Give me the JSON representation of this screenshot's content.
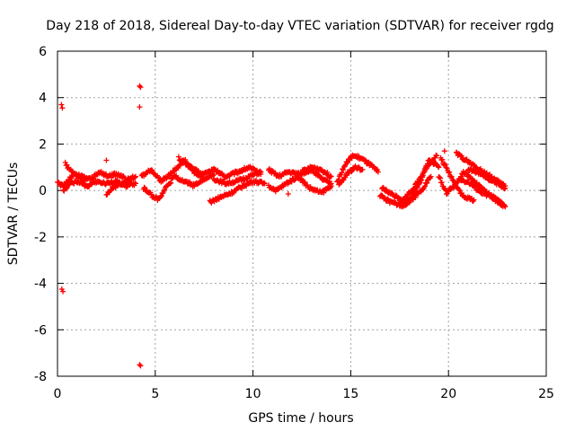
{
  "chart_data": {
    "type": "scatter",
    "title": "Day 218 of 2018, Sidereal Day-to-day VTEC variation (SDTVAR) for receiver rgdg",
    "xlabel": "GPS time / hours",
    "ylabel": "SDTVAR / TECUs",
    "xlim": [
      0,
      25
    ],
    "ylim": [
      -8,
      6
    ],
    "x_ticks": [
      0,
      5,
      10,
      15,
      20,
      25
    ],
    "y_ticks": [
      -8,
      -6,
      -4,
      -2,
      0,
      2,
      4,
      6
    ],
    "x_tick_labels": [
      "0",
      "5",
      "10",
      "15",
      "20",
      "25"
    ],
    "y_tick_labels": [
      "-8",
      "-6",
      "-4",
      "-2",
      "0",
      "2",
      "4",
      "6"
    ],
    "grid": true,
    "marker": "+",
    "color": "#ff0000",
    "outliers": [
      {
        "x": 0.2,
        "y": 3.7
      },
      {
        "x": 0.25,
        "y": 3.55
      },
      {
        "x": 0.22,
        "y": -4.25
      },
      {
        "x": 0.28,
        "y": -4.35
      },
      {
        "x": 4.2,
        "y": 4.5
      },
      {
        "x": 4.25,
        "y": 4.45
      },
      {
        "x": 4.2,
        "y": 3.6
      },
      {
        "x": 4.2,
        "y": -7.5
      },
      {
        "x": 4.25,
        "y": -7.55
      },
      {
        "x": 2.5,
        "y": 1.3
      },
      {
        "x": 11.8,
        "y": -0.15
      },
      {
        "x": 19.8,
        "y": 1.7
      }
    ],
    "tracks": [
      {
        "x": [
          0.0,
          0.3,
          0.6,
          0.9,
          1.3,
          1.7,
          2.2,
          2.6,
          3.0,
          3.5,
          4.0
        ],
        "y": [
          0.3,
          0.2,
          0.5,
          0.7,
          0.6,
          0.5,
          0.8,
          0.6,
          0.7,
          0.5,
          0.6
        ]
      },
      {
        "x": [
          0.3,
          0.6,
          1.0,
          1.5,
          2.0,
          2.5,
          3.0,
          3.5,
          4.0
        ],
        "y": [
          0.0,
          0.3,
          0.4,
          0.2,
          0.4,
          0.3,
          0.4,
          0.2,
          0.3
        ]
      },
      {
        "x": [
          0.4,
          0.6,
          1.0,
          1.4
        ],
        "y": [
          1.2,
          0.9,
          0.6,
          0.4
        ]
      },
      {
        "x": [
          2.5,
          2.8,
          3.2,
          3.7
        ],
        "y": [
          -0.2,
          0.1,
          0.3,
          0.4
        ]
      },
      {
        "x": [
          4.3,
          4.8,
          5.3,
          5.9,
          6.5,
          7.0,
          7.5,
          8.0
        ],
        "y": [
          0.6,
          0.9,
          0.4,
          0.8,
          1.3,
          0.8,
          0.5,
          0.7
        ]
      },
      {
        "x": [
          4.4,
          4.8,
          5.2,
          5.6,
          6.0,
          6.5,
          7.0,
          7.5
        ],
        "y": [
          0.1,
          -0.2,
          -0.4,
          0.2,
          0.6,
          0.4,
          0.2,
          0.5
        ]
      },
      {
        "x": [
          6.2,
          6.8,
          7.4,
          8.0,
          8.6,
          9.2,
          9.8,
          10.4
        ],
        "y": [
          1.4,
          1.0,
          0.7,
          0.9,
          0.6,
          0.8,
          1.0,
          0.7
        ]
      },
      {
        "x": [
          7.8,
          8.3,
          8.9,
          9.5,
          10.0,
          10.6
        ],
        "y": [
          -0.5,
          -0.3,
          -0.1,
          0.2,
          0.4,
          0.3
        ]
      },
      {
        "x": [
          8.0,
          8.6,
          9.2,
          9.8,
          10.4
        ],
        "y": [
          0.5,
          0.3,
          0.4,
          0.6,
          0.8
        ]
      },
      {
        "x": [
          10.8,
          11.3,
          11.8,
          12.4,
          13.0,
          13.5,
          14.0
        ],
        "y": [
          0.9,
          0.6,
          0.8,
          0.7,
          0.9,
          0.5,
          0.3
        ]
      },
      {
        "x": [
          10.8,
          11.2,
          11.7,
          12.3,
          12.9,
          13.5,
          14.0
        ],
        "y": [
          0.2,
          0.0,
          0.3,
          0.6,
          0.1,
          -0.1,
          0.2
        ]
      },
      {
        "x": [
          12.5,
          13.0,
          13.5,
          14.0
        ],
        "y": [
          0.8,
          1.0,
          0.9,
          0.6
        ]
      },
      {
        "x": [
          14.3,
          14.7,
          15.1,
          15.5,
          16.0,
          16.4
        ],
        "y": [
          0.4,
          1.1,
          1.5,
          1.4,
          1.1,
          0.8
        ]
      },
      {
        "x": [
          14.4,
          14.8,
          15.2,
          15.6
        ],
        "y": [
          0.2,
          0.7,
          1.0,
          0.9
        ]
      },
      {
        "x": [
          16.5,
          17.0,
          17.5,
          18.0,
          18.5,
          19.0,
          19.5
        ],
        "y": [
          -0.2,
          -0.5,
          -0.6,
          -0.4,
          0.3,
          1.3,
          1.0
        ]
      },
      {
        "x": [
          16.6,
          17.2,
          17.7,
          18.3,
          18.8,
          19.4
        ],
        "y": [
          0.1,
          -0.2,
          -0.4,
          0.2,
          0.9,
          1.5
        ]
      },
      {
        "x": [
          17.5,
          18.0,
          18.6,
          19.1
        ],
        "y": [
          -0.7,
          -0.5,
          0.0,
          0.6
        ]
      },
      {
        "x": [
          19.6,
          20.0,
          20.4,
          20.8,
          21.3
        ],
        "y": [
          1.4,
          0.8,
          0.2,
          -0.3,
          -0.4
        ]
      },
      {
        "x": [
          19.5,
          19.9,
          20.3,
          20.8,
          21.3,
          21.8,
          22.4,
          22.9
        ],
        "y": [
          0.6,
          -0.1,
          0.2,
          0.8,
          0.4,
          0.0,
          -0.4,
          -0.7
        ]
      },
      {
        "x": [
          20.4,
          20.9,
          21.4,
          22.0,
          22.5,
          22.9
        ],
        "y": [
          1.6,
          1.3,
          1.0,
          0.7,
          0.4,
          0.2
        ]
      },
      {
        "x": [
          20.6,
          21.1,
          21.7,
          22.3,
          22.8
        ],
        "y": [
          0.5,
          0.3,
          -0.1,
          -0.3,
          -0.6
        ]
      },
      {
        "x": [
          21.0,
          21.5,
          22.0,
          22.5,
          22.9
        ],
        "y": [
          0.9,
          0.8,
          0.5,
          0.3,
          0.1
        ]
      }
    ]
  }
}
